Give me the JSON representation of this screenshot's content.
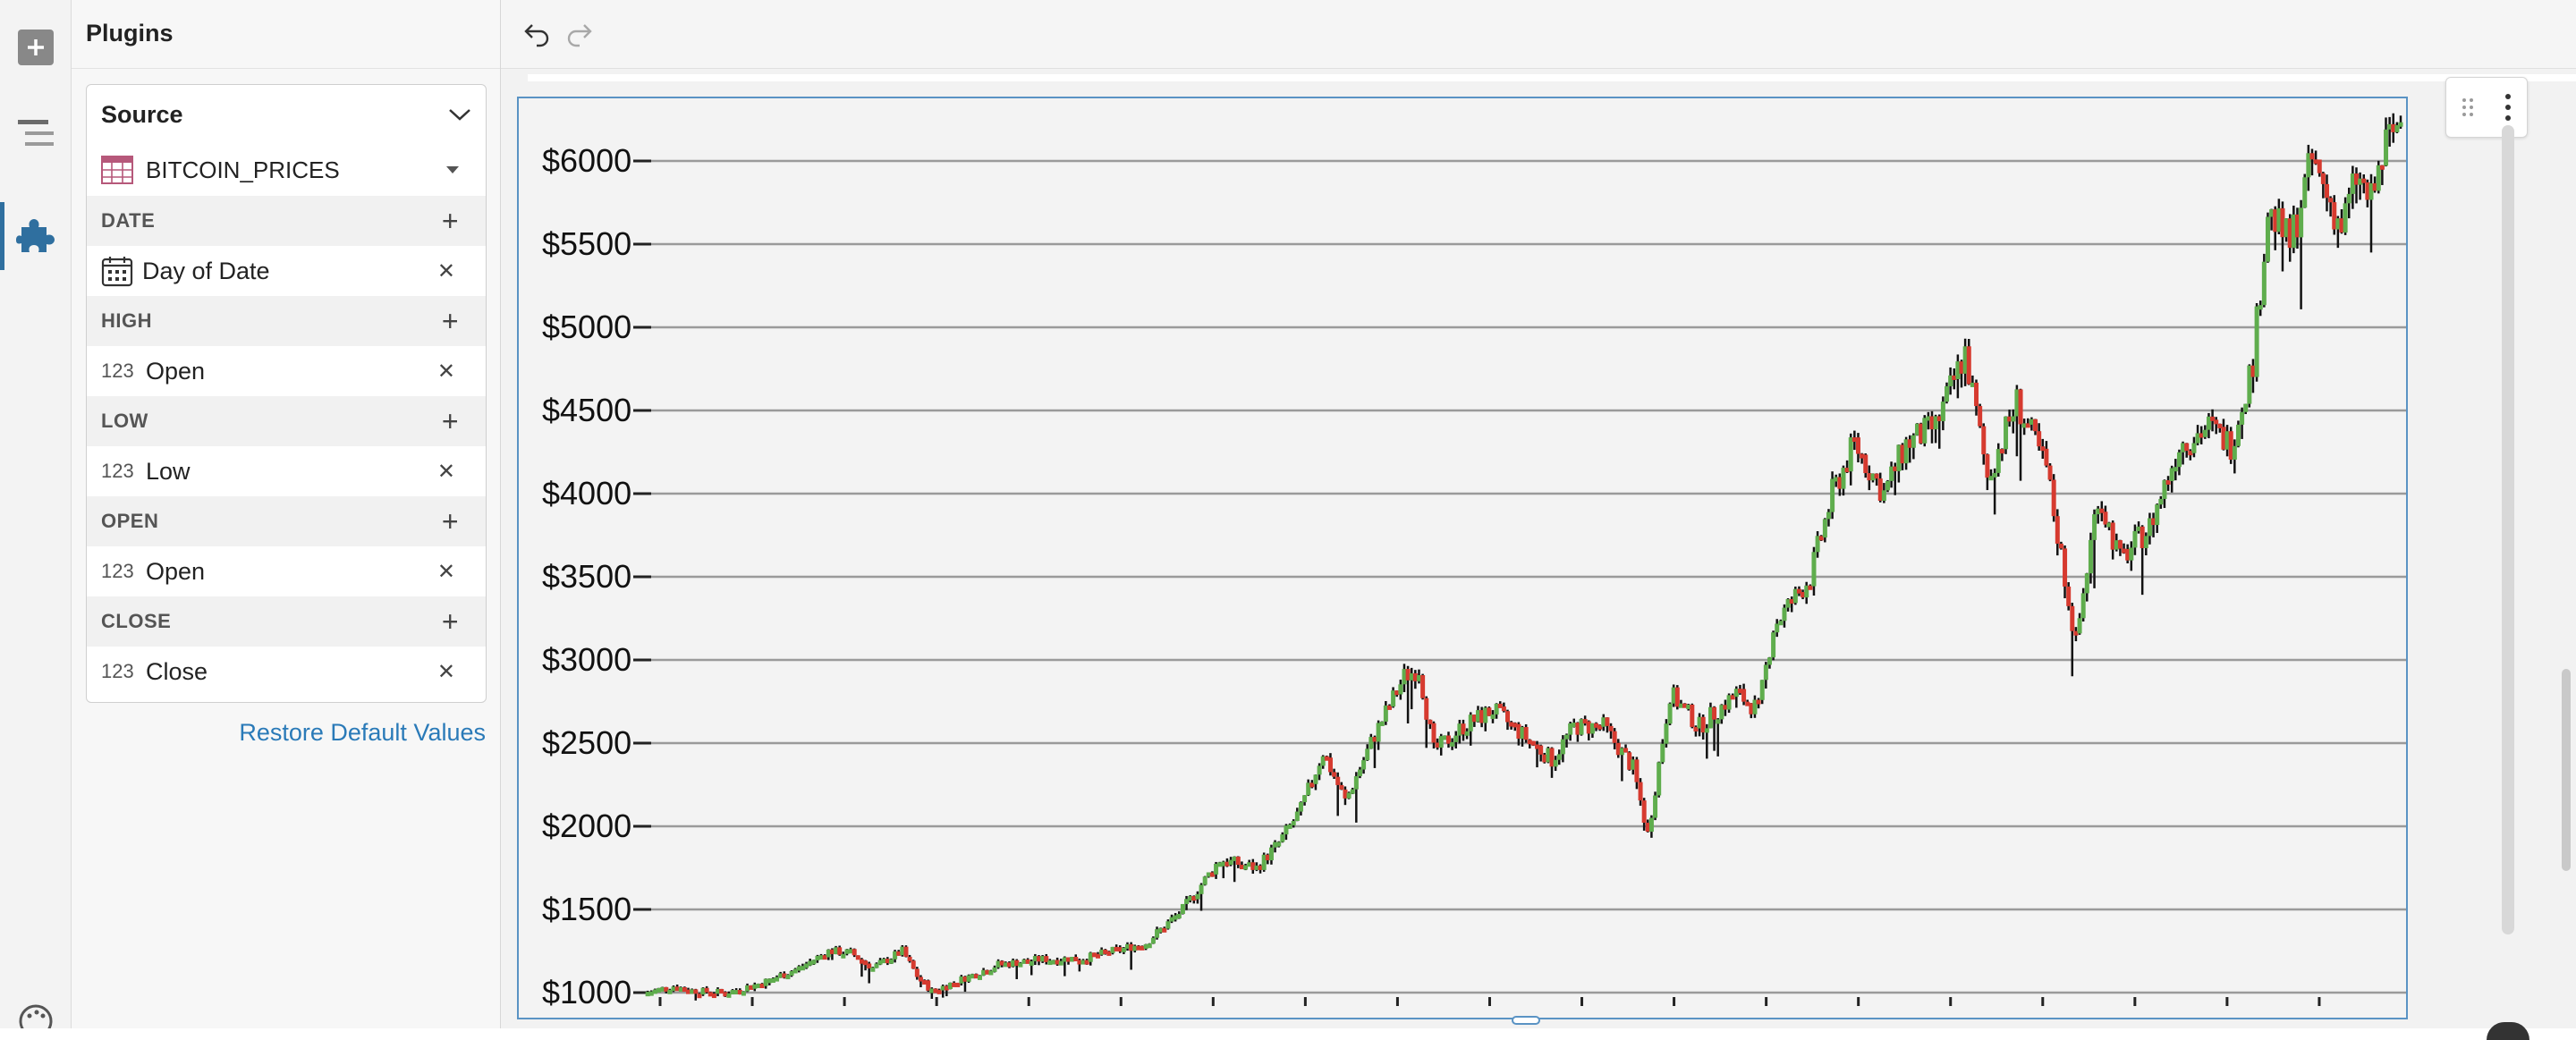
{
  "panel": {
    "title": "Plugins",
    "source": {
      "header": "Source",
      "table": "BITCOIN_PRICES"
    },
    "fields": [
      {
        "section": "DATE",
        "type_icon": "calendar-icon",
        "value": "Day of Date"
      },
      {
        "section": "HIGH",
        "type_label": "123",
        "value": "Open"
      },
      {
        "section": "LOW",
        "type_label": "123",
        "value": "Low"
      },
      {
        "section": "OPEN",
        "type_label": "123",
        "value": "Open"
      },
      {
        "section": "CLOSE",
        "type_label": "123",
        "value": "Close"
      }
    ],
    "restore_label": "Restore Default Values"
  },
  "colors": {
    "up": "#5fad4d",
    "down": "#d63a2f",
    "wick": "#111111",
    "accent": "#2f6f9f",
    "link": "#2a7ab8",
    "selection": "#5a93c4"
  },
  "chart_data": {
    "type": "candlestick",
    "title": "",
    "xlabel": "",
    "ylabel": "",
    "ylim": [
      1000,
      6200
    ],
    "yticks": [
      1000,
      1500,
      2000,
      2500,
      3000,
      3500,
      4000,
      4500,
      5000,
      5500,
      6000
    ],
    "ytick_labels": [
      "$1000",
      "$1500",
      "$2000",
      "$2500",
      "$3000",
      "$3500",
      "$4000",
      "$4500",
      "$5000",
      "$5500",
      "$6000"
    ],
    "grid": "horizontal",
    "x_tick_count": 20,
    "close_path": [
      [
        0,
        1000
      ],
      [
        8,
        1040
      ],
      [
        14,
        1010
      ],
      [
        22,
        1000
      ],
      [
        32,
        1060
      ],
      [
        42,
        1150
      ],
      [
        50,
        1250
      ],
      [
        56,
        1240
      ],
      [
        62,
        1150
      ],
      [
        70,
        1250
      ],
      [
        74,
        1100
      ],
      [
        78,
        1010
      ],
      [
        86,
        1080
      ],
      [
        96,
        1170
      ],
      [
        108,
        1200
      ],
      [
        120,
        1210
      ],
      [
        136,
        1300
      ],
      [
        146,
        1500
      ],
      [
        156,
        1800
      ],
      [
        166,
        1750
      ],
      [
        172,
        1900
      ],
      [
        178,
        2100
      ],
      [
        184,
        2450
      ],
      [
        190,
        2150
      ],
      [
        198,
        2550
      ],
      [
        206,
        2900
      ],
      [
        210,
        2950
      ],
      [
        214,
        2450
      ],
      [
        222,
        2600
      ],
      [
        230,
        2700
      ],
      [
        238,
        2550
      ],
      [
        246,
        2400
      ],
      [
        252,
        2600
      ],
      [
        260,
        2600
      ],
      [
        268,
        2350
      ],
      [
        272,
        1950
      ],
      [
        278,
        2800
      ],
      [
        286,
        2600
      ],
      [
        296,
        2800
      ],
      [
        302,
        2700
      ],
      [
        306,
        3200
      ],
      [
        316,
        3500
      ],
      [
        322,
        4000
      ],
      [
        328,
        4300
      ],
      [
        336,
        4000
      ],
      [
        342,
        4300
      ],
      [
        350,
        4400
      ],
      [
        358,
        4850
      ],
      [
        364,
        4100
      ],
      [
        372,
        4550
      ],
      [
        380,
        4150
      ],
      [
        388,
        3100
      ],
      [
        394,
        4000
      ],
      [
        400,
        3600
      ],
      [
        408,
        3800
      ],
      [
        416,
        4300
      ],
      [
        424,
        4400
      ],
      [
        430,
        4300
      ],
      [
        436,
        4800
      ],
      [
        440,
        5700
      ],
      [
        446,
        5500
      ],
      [
        452,
        6000
      ],
      [
        456,
        5800
      ],
      [
        460,
        5600
      ],
      [
        464,
        5900
      ],
      [
        468,
        5750
      ],
      [
        472,
        6100
      ],
      [
        476,
        6250
      ]
    ]
  }
}
